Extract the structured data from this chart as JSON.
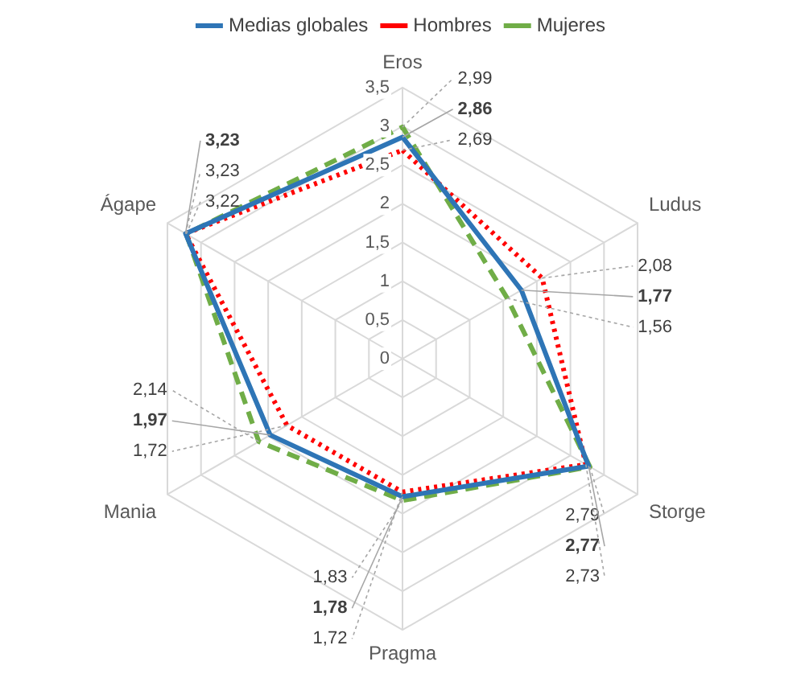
{
  "chart_data": {
    "type": "radar",
    "categories": [
      "Eros",
      "Ludus",
      "Storge",
      "Pragma",
      "Mania",
      "Ágape"
    ],
    "series": [
      {
        "name": "Medias globales",
        "color": "#2e75b6",
        "line_style": "solid",
        "values": [
          2.86,
          1.77,
          2.77,
          1.78,
          1.97,
          3.23
        ],
        "value_labels": [
          "2,86",
          "1,77",
          "2,77",
          "1,78",
          "1,97",
          "3,23"
        ]
      },
      {
        "name": "Hombres",
        "color": "#ff0000",
        "line_style": "dotted",
        "values": [
          2.69,
          2.08,
          2.73,
          1.72,
          1.72,
          3.23
        ],
        "value_labels": [
          "2,69",
          "2,08",
          "2,73",
          "1,72",
          "1,72",
          "3,23"
        ]
      },
      {
        "name": "Mujeres",
        "color": "#70ad47",
        "line_style": "dashed",
        "values": [
          2.99,
          1.56,
          2.79,
          1.83,
          2.14,
          3.22
        ],
        "value_labels": [
          "2,99",
          "1,56",
          "2,79",
          "1,83",
          "2,14",
          "3,22"
        ]
      }
    ],
    "ylim": [
      0,
      3.5
    ],
    "yticks": [
      0,
      {
        "value": 0.5,
        "label": "0,5"
      },
      1,
      {
        "value": 1.5,
        "label": "1,5"
      },
      2,
      {
        "value": 2.5,
        "label": "2,5"
      },
      3,
      {
        "value": 3.5,
        "label": "3,5"
      }
    ],
    "grid": true,
    "legend": "top",
    "marker": "none"
  }
}
